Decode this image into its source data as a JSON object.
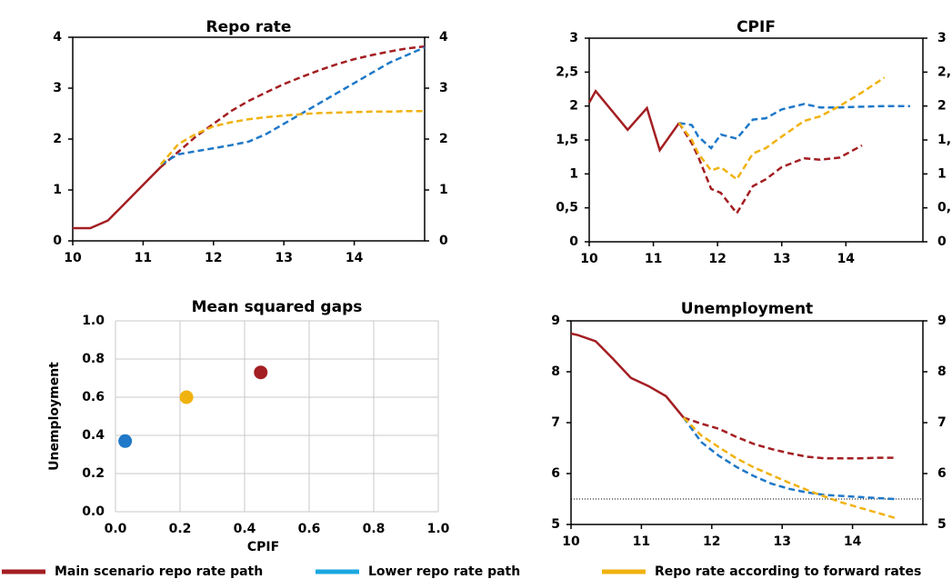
{
  "chart_data": [
    {
      "type": "line",
      "title": "Repo rate",
      "xlim": [
        10,
        15
      ],
      "xticks": [
        10,
        11,
        12,
        13,
        14
      ],
      "ylim": [
        0,
        4
      ],
      "yticks": [
        0,
        1,
        2,
        3,
        4
      ],
      "right_axis": true,
      "forecast_from": 11.25,
      "x": [
        10,
        10.25,
        10.5,
        10.75,
        11,
        11.25,
        11.5,
        11.75,
        12,
        12.25,
        12.5,
        12.75,
        13,
        13.25,
        13.5,
        13.75,
        14,
        14.25,
        14.5,
        14.75,
        15
      ],
      "series": [
        {
          "color": "#a31e22",
          "values": [
            0.25,
            0.25,
            0.4,
            0.75,
            1.1,
            1.45,
            1.75,
            2.05,
            2.3,
            2.55,
            2.75,
            2.92,
            3.08,
            3.22,
            3.35,
            3.47,
            3.57,
            3.65,
            3.72,
            3.78,
            3.82
          ]
        },
        {
          "color": "#1f78c8",
          "values": [
            null,
            null,
            null,
            null,
            null,
            1.5,
            1.7,
            1.76,
            1.82,
            1.88,
            1.95,
            2.1,
            2.3,
            2.5,
            2.7,
            2.9,
            3.1,
            3.3,
            3.5,
            3.65,
            3.8
          ]
        },
        {
          "color": "#f0b20f",
          "values": [
            null,
            null,
            null,
            null,
            null,
            1.5,
            1.9,
            2.1,
            2.25,
            2.33,
            2.39,
            2.43,
            2.46,
            2.49,
            2.51,
            2.52,
            2.53,
            2.54,
            2.54,
            2.55,
            2.55
          ]
        }
      ]
    },
    {
      "type": "line",
      "title": "CPIF",
      "xlim": [
        10,
        15.2
      ],
      "xticks": [
        10,
        11,
        12,
        13,
        14
      ],
      "ylim": [
        0,
        3
      ],
      "yticks": [
        0,
        {
          "value": 0.5,
          "label": "0,5"
        },
        1,
        {
          "value": 1.5,
          "label": "1,5"
        },
        2,
        {
          "value": 2.5,
          "label": "2,5"
        },
        3
      ],
      "right_axis": true,
      "forecast_from": 11.4,
      "x": [
        10,
        10.1,
        10.6,
        10.9,
        11.1,
        11.4,
        11.6,
        11.7,
        11.9,
        12.05,
        12.3,
        12.55,
        12.75,
        13,
        13.35,
        13.6,
        13.9,
        14.25,
        14.6,
        15
      ],
      "series": [
        {
          "color": "#a31e22",
          "values": [
            2.05,
            2.22,
            1.65,
            1.97,
            1.35,
            1.75,
            1.45,
            1.25,
            0.78,
            0.72,
            0.42,
            0.82,
            0.92,
            1.1,
            1.23,
            1.21,
            1.24,
            1.42,
            null,
            null
          ]
        },
        {
          "color": "#1f78c8",
          "values": [
            null,
            null,
            null,
            null,
            null,
            1.75,
            1.72,
            1.55,
            1.38,
            1.58,
            1.52,
            1.8,
            1.82,
            1.95,
            2.03,
            1.98,
            1.98,
            1.99,
            2.0,
            2.0
          ]
        },
        {
          "color": "#f0b20f",
          "values": [
            null,
            null,
            null,
            null,
            null,
            1.75,
            1.5,
            1.3,
            1.05,
            1.1,
            0.92,
            1.3,
            1.38,
            1.55,
            1.78,
            1.85,
            2.0,
            2.2,
            2.42,
            null
          ]
        }
      ]
    },
    {
      "type": "scatter",
      "title": "Mean squared gaps",
      "x_label": "CPIF",
      "y_label": "Unemployment",
      "grid": true,
      "xlim": [
        0,
        1
      ],
      "xticks": [
        {
          "value": 0,
          "label": "0.0"
        },
        0.2,
        0.4,
        0.6,
        0.8,
        {
          "value": 1,
          "label": "1.0"
        }
      ],
      "ylim": [
        0,
        1
      ],
      "yticks": [
        {
          "value": 0,
          "label": "0.0"
        },
        0.2,
        0.4,
        0.6,
        0.8,
        {
          "value": 1,
          "label": "1.0"
        }
      ],
      "series": [
        {
          "color": "#a31e22",
          "x": [
            0.45
          ],
          "values": [
            0.73
          ]
        },
        {
          "color": "#1f78c8",
          "x": [
            0.03
          ],
          "values": [
            0.37
          ]
        },
        {
          "color": "#f0b20f",
          "x": [
            0.22
          ],
          "values": [
            0.6
          ]
        }
      ]
    },
    {
      "type": "line",
      "title": "Unemployment",
      "xlim": [
        10,
        15
      ],
      "xticks": [
        10,
        11,
        12,
        13,
        14
      ],
      "ylim": [
        5,
        9
      ],
      "yticks": [
        5,
        6,
        7,
        8,
        9
      ],
      "right_axis": true,
      "forecast_from": 11.6,
      "reference_line": 5.5,
      "x": [
        10,
        10.1,
        10.35,
        10.6,
        10.85,
        11.1,
        11.35,
        11.6,
        11.85,
        12.1,
        12.35,
        12.6,
        12.85,
        13.1,
        13.35,
        13.6,
        13.85,
        14.1,
        14.35,
        14.6
      ],
      "series": [
        {
          "color": "#a31e22",
          "values": [
            8.75,
            8.72,
            8.6,
            8.25,
            7.88,
            7.72,
            7.52,
            7.1,
            6.98,
            6.88,
            6.72,
            6.58,
            6.48,
            6.4,
            6.33,
            6.3,
            6.3,
            6.3,
            6.31,
            6.31
          ]
        },
        {
          "color": "#1f78c8",
          "values": [
            null,
            null,
            null,
            null,
            null,
            null,
            null,
            7.1,
            6.62,
            6.35,
            6.13,
            5.95,
            5.8,
            5.7,
            5.63,
            5.58,
            5.56,
            5.54,
            5.52,
            5.5
          ]
        },
        {
          "color": "#f0b20f",
          "values": [
            null,
            null,
            null,
            null,
            null,
            null,
            null,
            7.1,
            6.75,
            6.52,
            6.3,
            6.12,
            5.97,
            5.82,
            5.68,
            5.55,
            5.43,
            5.33,
            5.23,
            5.13
          ]
        }
      ]
    }
  ],
  "legend": [
    {
      "name": "Main scenario repo rate path",
      "color": "#a31e22"
    },
    {
      "name": "Lower repo rate path",
      "color": "#1aa7e0"
    },
    {
      "name": "Repo rate according to forward rates",
      "color": "#f0b20f"
    }
  ]
}
